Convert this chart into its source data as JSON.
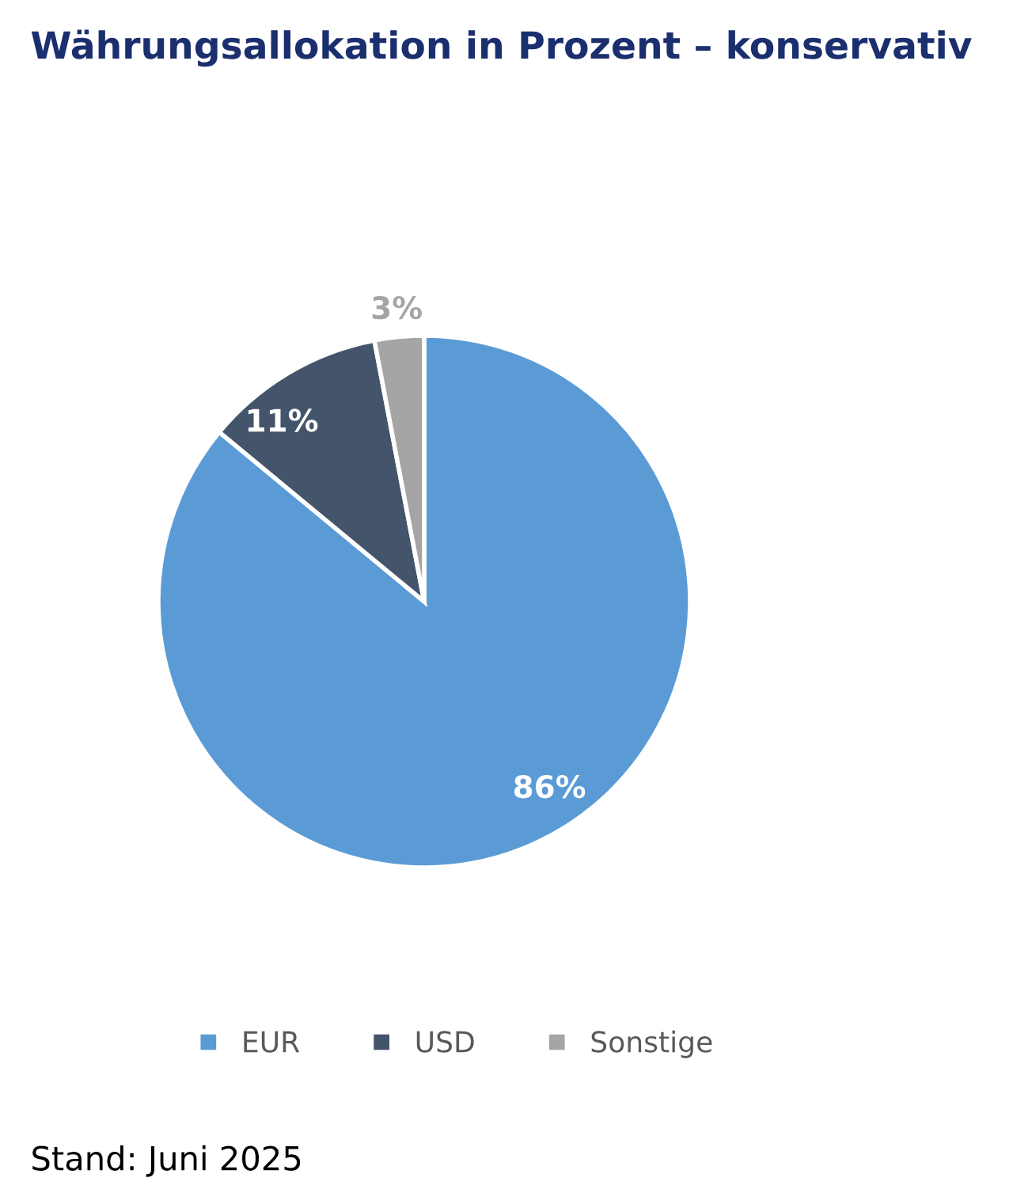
{
  "chart_data": {
    "type": "pie",
    "title": "Währungsallokation in Prozent – konservativ",
    "categories": [
      "EUR",
      "USD",
      "Sonstige"
    ],
    "values": [
      86,
      11,
      3
    ],
    "colors": [
      "#5b9bd5",
      "#44546a",
      "#a5a5a5"
    ],
    "value_labels": [
      "86%",
      "11%",
      "3%"
    ],
    "legend": "bottom",
    "annotations": [
      "Stand: Juni 2025"
    ]
  }
}
